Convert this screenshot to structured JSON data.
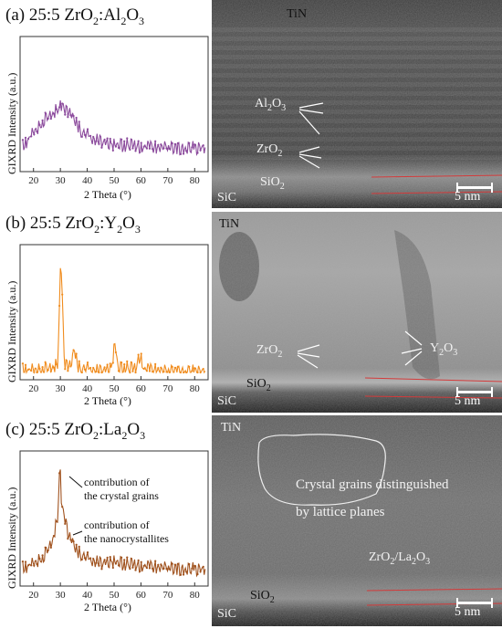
{
  "panels": [
    {
      "tag": "(a)",
      "title_prefix": "25:5 ZrO",
      "title_sub1": "2",
      "title_mid": ":Al",
      "title_sub2": "2",
      "title_end": "O",
      "title_sub3": "3",
      "ylabel": "GIXRD Intensity (a.u.)",
      "xlabel": "2 Theta (°)",
      "color": "#8b4a9c",
      "tem_labels": {
        "top": "TiN",
        "oxide1": "Al2O3",
        "oxide2": "ZrO2",
        "interface": "SiO2",
        "substrate": "SiC",
        "scale": "5 nm"
      }
    },
    {
      "tag": "(b)",
      "title_prefix": "25:5 ZrO",
      "title_sub1": "2",
      "title_mid": ":Y",
      "title_sub2": "2",
      "title_end": "O",
      "title_sub3": "3",
      "ylabel": "GIXRD Intensity (a.u.)",
      "xlabel": "2 Theta (°)",
      "color": "#f08c1e",
      "tem_labels": {
        "top": "TiN",
        "oxide1": "ZrO2",
        "oxide2": "Y2O3",
        "interface": "SiO2",
        "substrate": "SiC",
        "scale": "5 nm"
      }
    },
    {
      "tag": "(c)",
      "title_prefix": "25:5 ZrO",
      "title_sub1": "2",
      "title_mid": ":La",
      "title_sub2": "2",
      "title_end": "O",
      "title_sub3": "3",
      "ylabel": "GIXRD Intensity (a.u.)",
      "xlabel": "2 Theta (°)",
      "color": "#a0521e",
      "annotation1a": "contribution of",
      "annotation1b": "the crystal grains",
      "annotation2a": "contribution of",
      "annotation2b": "the nanocrystallites",
      "tem_labels": {
        "top": "TiN",
        "grain_label1": "Crystal grains distinguished",
        "grain_label2": "by lattice planes",
        "oxide": "ZrO2/La2O3",
        "interface": "SiO2",
        "substrate": "SiC",
        "scale": "5 nm"
      }
    }
  ],
  "chart_data": [
    {
      "type": "line",
      "title": "25:5 ZrO2:Al2O3",
      "xlabel": "2 Theta (°)",
      "ylabel": "GIXRD Intensity (a.u.)",
      "xlim": [
        15,
        85
      ],
      "xticks": [
        20,
        30,
        40,
        50,
        60,
        70,
        80
      ],
      "x": [
        16,
        20,
        24,
        27,
        29,
        31,
        33,
        35,
        38,
        42,
        50,
        60,
        70,
        80,
        84
      ],
      "y": [
        0.18,
        0.3,
        0.4,
        0.46,
        0.5,
        0.52,
        0.48,
        0.4,
        0.3,
        0.25,
        0.2,
        0.18,
        0.17,
        0.17,
        0.17
      ]
    },
    {
      "type": "line",
      "title": "25:5 ZrO2:Y2O3",
      "xlabel": "2 Theta (°)",
      "ylabel": "GIXRD Intensity (a.u.)",
      "xlim": [
        15,
        85
      ],
      "xticks": [
        20,
        30,
        40,
        50,
        60,
        70,
        80
      ],
      "x": [
        16,
        25,
        29,
        30.2,
        31.5,
        34,
        35.2,
        36.5,
        45,
        49,
        50.3,
        51.5,
        58,
        59.8,
        61,
        70,
        84
      ],
      "y": [
        0.05,
        0.06,
        0.1,
        1.0,
        0.12,
        0.08,
        0.22,
        0.07,
        0.05,
        0.07,
        0.28,
        0.07,
        0.06,
        0.19,
        0.06,
        0.04,
        0.04
      ]
    },
    {
      "type": "line",
      "title": "25:5 ZrO2:La2O3",
      "xlabel": "2 Theta (°)",
      "ylabel": "GIXRD Intensity (a.u.)",
      "xlim": [
        15,
        85
      ],
      "xticks": [
        20,
        30,
        40,
        50,
        60,
        70,
        80
      ],
      "x": [
        16,
        20,
        24,
        27,
        29,
        29.8,
        30.5,
        31.5,
        33,
        36,
        40,
        45,
        50,
        55,
        60,
        70,
        84
      ],
      "y": [
        0.12,
        0.16,
        0.22,
        0.35,
        0.55,
        1.0,
        0.62,
        0.58,
        0.4,
        0.26,
        0.2,
        0.17,
        0.18,
        0.15,
        0.14,
        0.12,
        0.11
      ]
    }
  ]
}
